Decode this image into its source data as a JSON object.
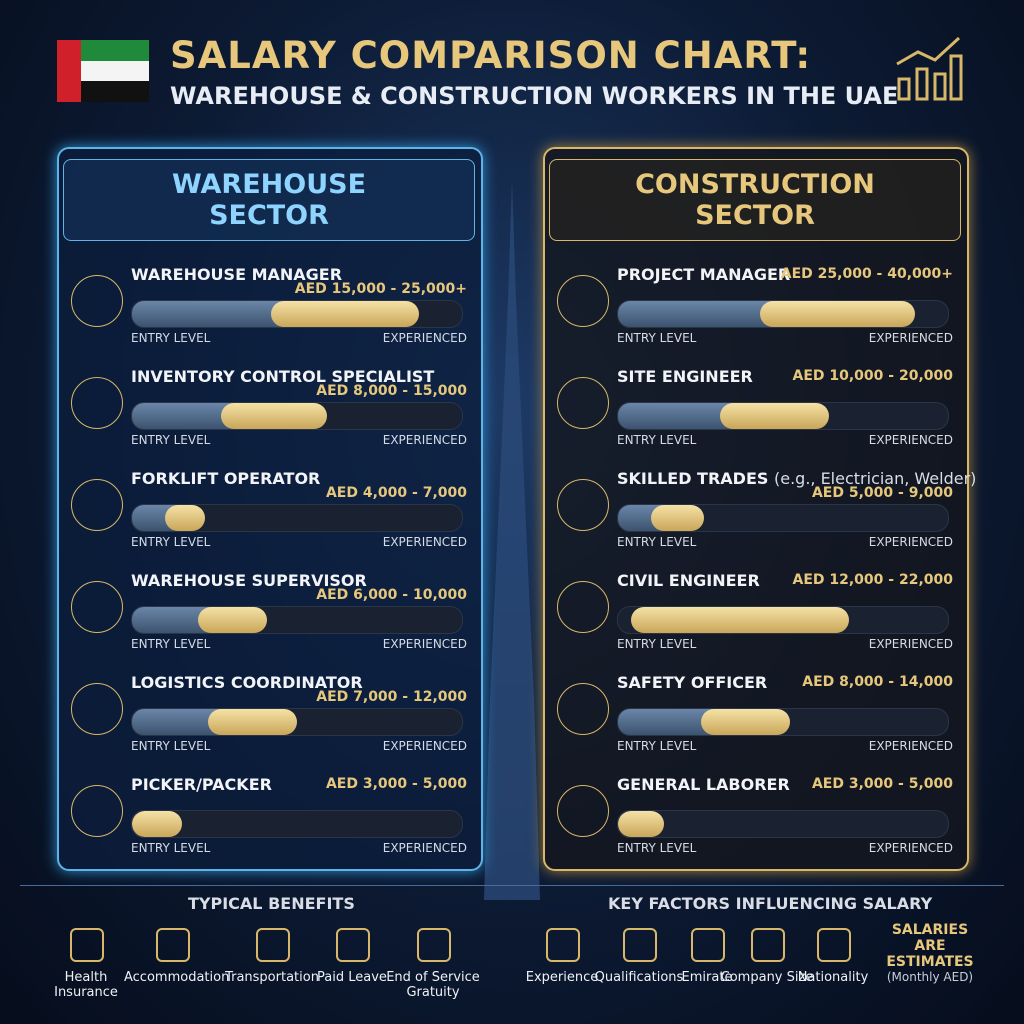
{
  "header": {
    "title": "SALARY COMPARISON CHART:",
    "subtitle": "WAREHOUSE & CONSTRUCTION WORKERS IN THE UAE"
  },
  "scale": {
    "low": "ENTRY LEVEL",
    "high": "EXPERIENCED"
  },
  "sectors": [
    {
      "title": "WAREHOUSE SECTOR",
      "roles": [
        {
          "title": "WAREHOUSE MANAGER",
          "salary": "AED 15,000 - 25,000+"
        },
        {
          "title": "INVENTORY CONTROL SPECIALIST",
          "salary": "AED 8,000 - 15,000"
        },
        {
          "title": "FORKLIFT OPERATOR",
          "salary": "AED 4,000 - 7,000"
        },
        {
          "title": "WAREHOUSE SUPERVISOR",
          "salary": "AED 6,000 - 10,000"
        },
        {
          "title": "LOGISTICS COORDINATOR",
          "salary": "AED 7,000 - 12,000"
        },
        {
          "title": "PICKER/PACKER",
          "salary": "AED 3,000 - 5,000"
        }
      ]
    },
    {
      "title": "CONSTRUCTION SECTOR",
      "roles": [
        {
          "title": "PROJECT MANAGER",
          "salary": "AED 25,000 - 40,000+"
        },
        {
          "title": "SITE ENGINEER",
          "salary": "AED 10,000 - 20,000"
        },
        {
          "title": "SKILLED TRADES",
          "note": "(e.g., Electrician, Welder)",
          "salary": "AED 5,000 - 9,000"
        },
        {
          "title": "CIVIL ENGINEER",
          "salary": "AED 12,000 - 22,000"
        },
        {
          "title": "SAFETY OFFICER",
          "salary": "AED 8,000 - 14,000"
        },
        {
          "title": "GENERAL LABORER",
          "salary": "AED 3,000 - 5,000"
        }
      ]
    }
  ],
  "benefits": {
    "title": "TYPICAL BENEFITS",
    "items": [
      "Health Insurance",
      "Accommodation",
      "Transportation",
      "Paid Leave",
      "End of Service Gratuity"
    ]
  },
  "factors": {
    "title": "KEY FACTORS INFLUENCING SALARY",
    "items": [
      "Experience",
      "Qualifications",
      "Emirate",
      "Company Size",
      "Nationality"
    ]
  },
  "note": {
    "title": "SALARIES ARE ESTIMATES",
    "subtitle": "(Monthly AED)"
  }
}
